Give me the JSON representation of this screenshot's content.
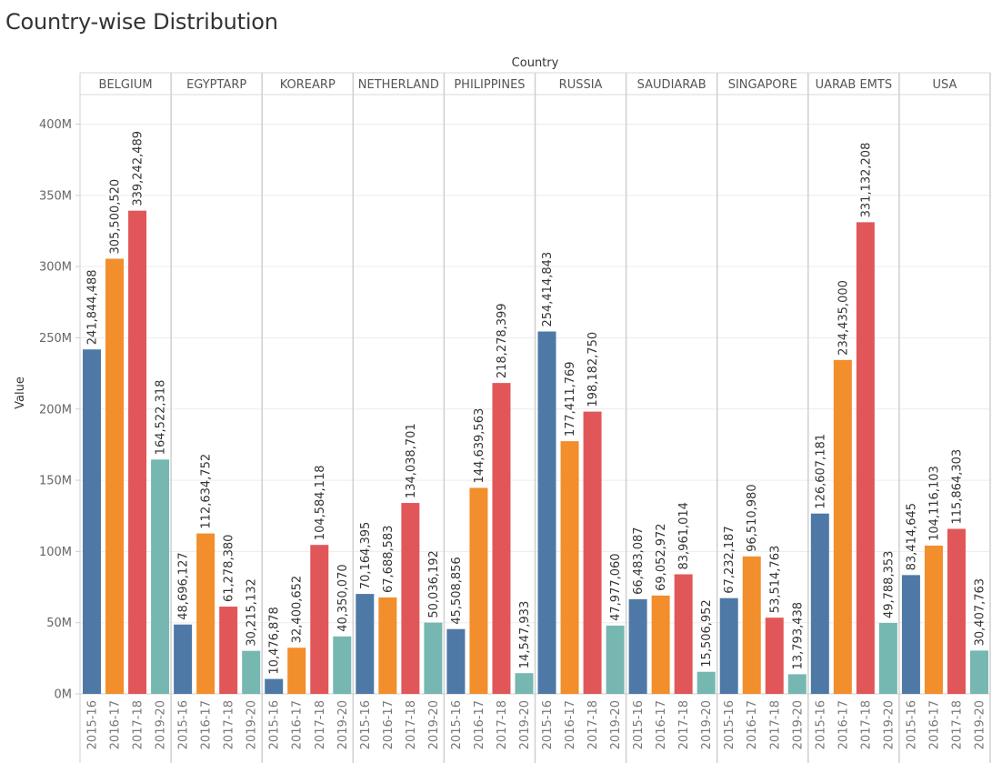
{
  "title": "Country-wise Distribution",
  "chart_data": {
    "type": "bar",
    "title": "Country-wise Distribution",
    "column_header": "Country",
    "ylabel": "Value",
    "ylim": [
      0,
      420000000
    ],
    "y_ticks": [
      {
        "value": 0,
        "label": "0M"
      },
      {
        "value": 50000000,
        "label": "50M"
      },
      {
        "value": 100000000,
        "label": "100M"
      },
      {
        "value": 150000000,
        "label": "150M"
      },
      {
        "value": 200000000,
        "label": "200M"
      },
      {
        "value": 250000000,
        "label": "250M"
      },
      {
        "value": 300000000,
        "label": "300M"
      },
      {
        "value": 350000000,
        "label": "350M"
      },
      {
        "value": 400000000,
        "label": "400M"
      }
    ],
    "grid": true,
    "years": [
      "2015-16",
      "2016-17",
      "2017-18",
      "2019-20"
    ],
    "year_colors": [
      "#4e79a7",
      "#f28e2b",
      "#e15759",
      "#76b7b2"
    ],
    "panels": [
      {
        "country": "BELGIUM",
        "values": [
          241844488,
          305500520,
          339242489,
          164522318
        ],
        "labels": [
          "241,844,488",
          "305,500,520",
          "339,242,489",
          "164,522,318"
        ]
      },
      {
        "country": "EGYPTARP",
        "values": [
          48696127,
          112634752,
          61278380,
          30215132
        ],
        "labels": [
          "48,696,127",
          "112,634,752",
          "61,278,380",
          "30,215,132"
        ]
      },
      {
        "country": "KOREARP",
        "values": [
          10476878,
          32400652,
          104584118,
          40350070
        ],
        "labels": [
          "10,476,878",
          "32,400,652",
          "104,584,118",
          "40,350,070"
        ]
      },
      {
        "country": "NETHERLAND",
        "values": [
          70164395,
          67688583,
          134038701,
          50036192
        ],
        "labels": [
          "70,164,395",
          "67,688,583",
          "134,038,701",
          "50,036,192"
        ]
      },
      {
        "country": "PHILIPPINES",
        "values": [
          45508856,
          144639563,
          218278399,
          14547933
        ],
        "labels": [
          "45,508,856",
          "144,639,563",
          "218,278,399",
          "14,547,933"
        ]
      },
      {
        "country": "RUSSIA",
        "values": [
          254414843,
          177411769,
          198182750,
          47977060
        ],
        "labels": [
          "254,414,843",
          "177,411,769",
          "198,182,750",
          "47,977,060"
        ]
      },
      {
        "country": "SAUDIARAB",
        "values": [
          66483087,
          69052972,
          83961014,
          15506952
        ],
        "labels": [
          "66,483,087",
          "69,052,972",
          "83,961,014",
          "15,506,952"
        ]
      },
      {
        "country": "SINGAPORE",
        "values": [
          67232187,
          96510980,
          53514763,
          13793438
        ],
        "labels": [
          "67,232,187",
          "96,510,980",
          "53,514,763",
          "13,793,438"
        ]
      },
      {
        "country": "UARAB EMTS",
        "values": [
          126607181,
          234435000,
          331132208,
          49788353
        ],
        "labels": [
          "126,607,181",
          "234,435,000",
          "331,132,208",
          "49,788,353"
        ]
      },
      {
        "country": "USA",
        "values": [
          83414645,
          104116103,
          115864303,
          30407763
        ],
        "labels": [
          "83,414,645",
          "104,116,103",
          "115,864,303",
          "30,407,763"
        ]
      }
    ]
  }
}
